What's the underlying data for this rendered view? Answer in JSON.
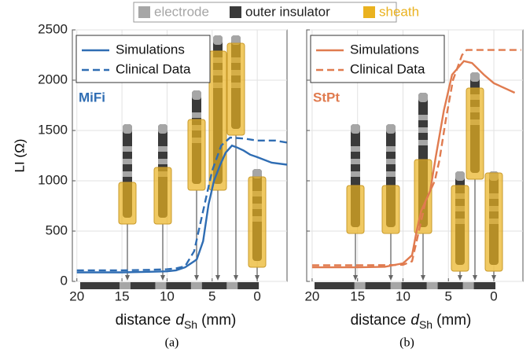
{
  "legend": [
    {
      "name": "electrode",
      "color": "#a6a6a6"
    },
    {
      "name": "outer insulator",
      "color": "#3a3a3a"
    },
    {
      "name": "sheath",
      "color": "#eab21f"
    }
  ],
  "chart_data": [
    {
      "type": "line",
      "caption": "(a)",
      "annotation": "MiFi",
      "y_label": "LI (Ω)",
      "x_label": [
        "distance",
        "d",
        "Sh",
        "(mm)"
      ],
      "xlim": [
        20.5,
        -3.3
      ],
      "xticks": [
        20,
        15,
        10,
        5,
        0
      ],
      "ylim": [
        0,
        2500
      ],
      "yticks": [
        0,
        500,
        1000,
        1500,
        2000,
        2500
      ],
      "show_ytick_labels": true,
      "grid": true,
      "series": [
        {
          "name": "Simulations",
          "color": "#2f6db3",
          "dash": false,
          "x": [
            20,
            15,
            12,
            10,
            9,
            8,
            7.5,
            7,
            6.7,
            6,
            5.4,
            4.8,
            4.1,
            3.5,
            2.8,
            2.2,
            1.5,
            0.8,
            0,
            -1.6,
            -3.3
          ],
          "values": [
            90,
            90,
            95,
            100,
            110,
            140,
            170,
            200,
            220,
            400,
            765,
            1000,
            1160,
            1280,
            1350,
            1330,
            1300,
            1260,
            1235,
            1180,
            1160
          ]
        },
        {
          "name": "Clinical Data",
          "color": "#2f6db3",
          "dash": true,
          "x": [
            20,
            15,
            12,
            10,
            9,
            8,
            7,
            6,
            5,
            4,
            3,
            1.5,
            0,
            -2,
            -3.3
          ],
          "values": [
            110,
            110,
            115,
            120,
            130,
            150,
            300,
            700,
            1100,
            1350,
            1430,
            1420,
            1400,
            1400,
            1380
          ]
        }
      ]
    },
    {
      "type": "line",
      "caption": "(b)",
      "annotation": "StPt",
      "x_label": [
        "distance",
        "d",
        "Sh",
        "(mm)"
      ],
      "xlim": [
        20.6,
        -3.2
      ],
      "xticks": [
        20,
        15,
        10,
        5,
        0
      ],
      "ylim": [
        0,
        2500
      ],
      "yticks": [
        0,
        500,
        1000,
        1500,
        2000,
        2500
      ],
      "show_ytick_labels": false,
      "grid": true,
      "series": [
        {
          "name": "Simulations",
          "color": "#e07b4f",
          "dash": false,
          "x": [
            20,
            15,
            12,
            10,
            9,
            8.5,
            8,
            7,
            6.4,
            5.5,
            4.6,
            3.3,
            2.4,
            1.1,
            0,
            -1.2,
            -2.3
          ],
          "values": [
            140,
            140,
            145,
            180,
            260,
            500,
            700,
            900,
            1235,
            1700,
            2055,
            2190,
            2170,
            2055,
            1970,
            1920,
            1875
          ]
        },
        {
          "name": "Clinical Data",
          "color": "#e07b4f",
          "dash": true,
          "x": [
            20,
            15,
            12,
            10,
            9,
            8.5,
            7.5,
            6.5,
            6,
            5.3,
            4.5,
            3.5,
            3,
            1,
            -1,
            -3
          ],
          "values": [
            160,
            160,
            162,
            165,
            200,
            400,
            800,
            1000,
            1200,
            1600,
            2000,
            2250,
            2300,
            2300,
            2300,
            2300
          ]
        }
      ]
    }
  ]
}
